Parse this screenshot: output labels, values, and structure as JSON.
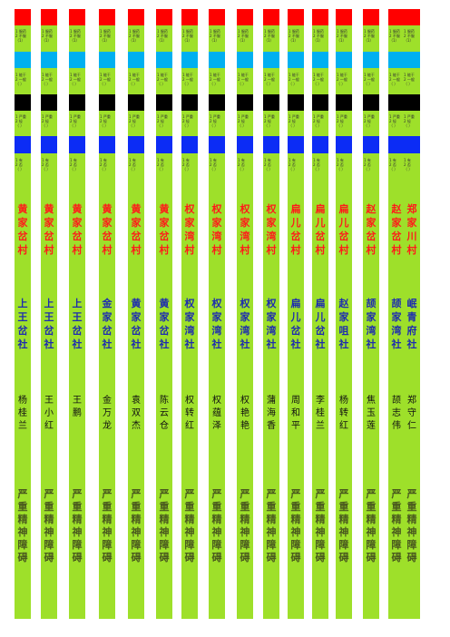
{
  "legend": {
    "red": "1 服药\n2 不服\n（1）",
    "cyan": "1 能干\n2 一般\n（ ）",
    "black": "1 严重\n2 轻\n（ ）",
    "blue": "1 有\n2 否\n（ ）"
  },
  "strips": [
    {
      "village": "黄家岔村",
      "group": "上王岔社",
      "name": "杨桂兰",
      "condition": "严重精神障碍"
    },
    {
      "village": "黄家岔村",
      "group": "上王岔社",
      "name": "王小红",
      "condition": "严重精神障碍"
    },
    {
      "village": "黄家岔村",
      "group": "上王岔社",
      "name": "王鹏",
      "condition": "严重精神障碍"
    },
    {
      "village": "黄家岔村",
      "group": "金家岔社",
      "name": "金万龙",
      "condition": "严重精神障碍"
    },
    {
      "village": "黄家岔村",
      "group": "黄家岔社",
      "name": "袁双杰",
      "condition": "严重精神障碍"
    },
    {
      "village": "黄家岔村",
      "group": "黄家岔社",
      "name": "陈云仓",
      "condition": "严重精神障碍"
    },
    {
      "village": "权家湾村",
      "group": "权家湾社",
      "name": "权转红",
      "condition": "严重精神障碍"
    },
    {
      "village": "权家湾村",
      "group": "权家湾社",
      "name": "权蕴泽",
      "condition": "严重精神障碍"
    },
    {
      "village": "权家湾村",
      "group": "权家湾社",
      "name": "权艳艳",
      "condition": "严重精神障碍"
    },
    {
      "village": "权家湾村",
      "group": "权家湾社",
      "name": "蒲海香",
      "condition": "严重精神障碍"
    },
    {
      "village": "扁儿岔村",
      "group": "扁儿岔社",
      "name": "周和平",
      "condition": "严重精神障碍"
    },
    {
      "village": "扁儿岔村",
      "group": "扁儿岔社",
      "name": "李桂兰",
      "condition": "严重精神障碍"
    },
    {
      "village": "扁儿岔村",
      "group": "赵家咀社",
      "name": "杨转红",
      "condition": "严重精神障碍"
    },
    {
      "village": "赵家岔村",
      "group": "颉家湾社",
      "name": "焦玉莲",
      "condition": "严重精神障碍"
    },
    {
      "village": "赵家岔村",
      "group": "颉家湾社",
      "name": "颉志伟",
      "condition": "严重精神障碍"
    },
    {
      "village": "郑家川村",
      "group": "岷青府社",
      "name": "郑守仁",
      "condition": "严重精神障碍"
    }
  ]
}
